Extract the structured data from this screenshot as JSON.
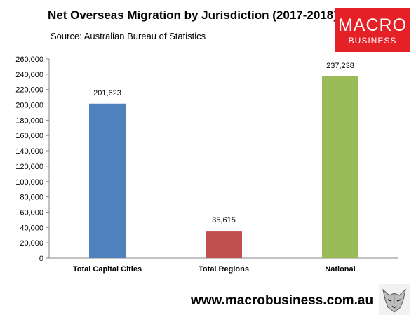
{
  "header": {
    "title": "Net Overseas Migration by Jurisdiction (2017-2018)",
    "subtitle": "Source: Australian Bureau of Statistics"
  },
  "logo": {
    "line1": "MACRO",
    "line2": "BUSINESS",
    "color": "#e42127"
  },
  "footer": {
    "website": "www.macrobusiness.com.au",
    "mascot_icon": "wolf-icon"
  },
  "chart_data": {
    "type": "bar",
    "categories": [
      "Total Capital Cities",
      "Total Regions",
      "National"
    ],
    "values": [
      201623,
      35615,
      237238
    ],
    "data_labels": [
      "201,623",
      "35,615",
      "237,238"
    ],
    "colors": [
      "#4f81bd",
      "#c0504d",
      "#9bbb59"
    ],
    "ylim": [
      0,
      260000
    ],
    "ytick_step": 20000,
    "yticks": [
      "0",
      "20,000",
      "40,000",
      "60,000",
      "80,000",
      "100,000",
      "120,000",
      "140,000",
      "160,000",
      "180,000",
      "200,000",
      "220,000",
      "240,000",
      "260,000"
    ],
    "grid": false,
    "xlabel": "",
    "ylabel": ""
  }
}
